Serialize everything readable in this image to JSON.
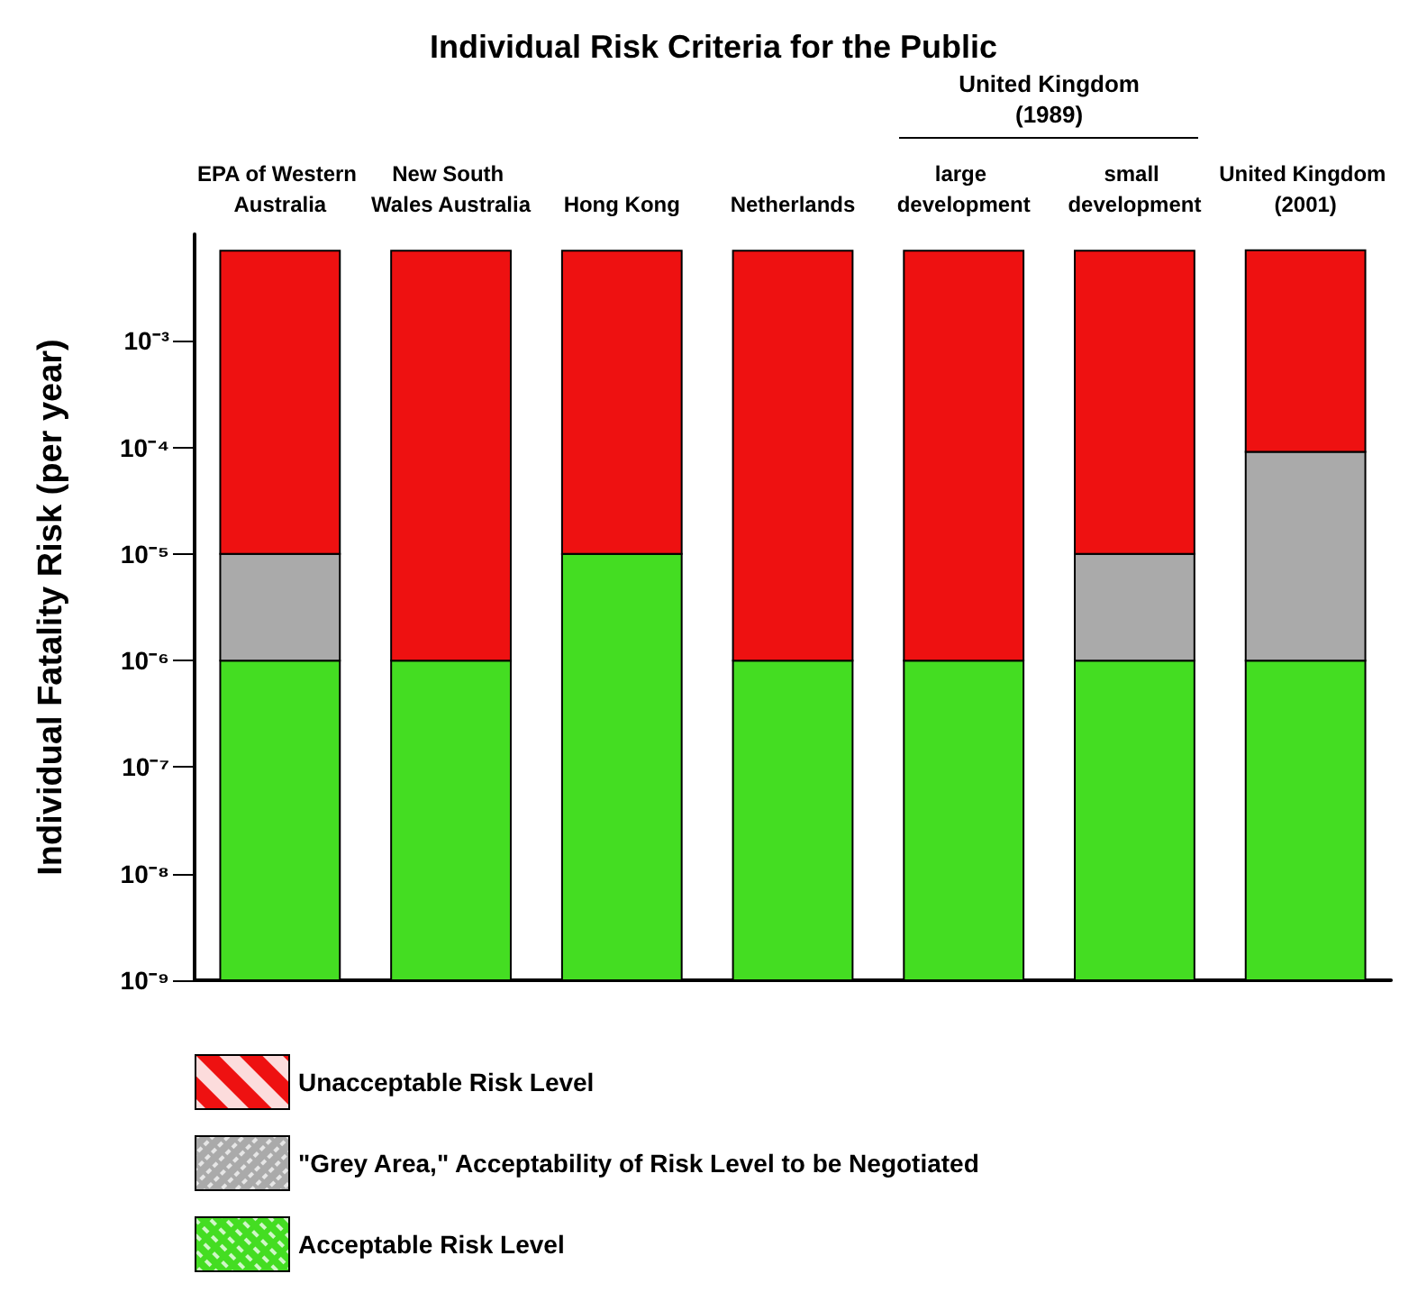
{
  "chart_data": {
    "type": "bar",
    "title": "Individual Risk Criteria for the Public",
    "ylabel": "Individual Fatality Risk (per year)",
    "categories": [
      "EPA of Western Australia",
      "New South Wales Australia",
      "Hong Kong",
      "Netherlands",
      "large development",
      "small development",
      "United Kingdom (2001)"
    ],
    "annotations": [
      "United Kingdom (1989)"
    ],
    "stacked": true,
    "log": true,
    "ylim": [
      1e-09,
      0.01
    ],
    "yticks": [
      {
        "value": 1e-09,
        "label": "10⁻⁹"
      },
      {
        "value": 1e-08,
        "label": "10⁻⁸"
      },
      {
        "value": 1e-07,
        "label": "10⁻⁷"
      },
      {
        "value": 1e-06,
        "label": "10⁻⁶"
      },
      {
        "value": 1e-05,
        "label": "10⁻⁵"
      },
      {
        "value": 0.0001,
        "label": "10⁻⁴"
      },
      {
        "value": 0.001,
        "label": "10⁻³"
      }
    ],
    "legend": "bottom left",
    "grid": false,
    "series": [
      {
        "name": "Acceptable Risk Level",
        "color": "#44dd22",
        "values": [
          1e-06,
          1e-06,
          1e-05,
          1e-06,
          1e-06,
          1e-06,
          1e-06
        ]
      },
      {
        "name": "\"Grey Area,\" Acceptability of Risk Level to be Negotiated",
        "color": "#aaaaaa",
        "values": [
          9e-06,
          null,
          null,
          null,
          null,
          9e-06,
          9e-05
        ]
      },
      {
        "name": "Unacceptable Risk Level",
        "color": "#ee1111",
        "values": [
          0.007,
          0.007,
          0.007,
          0.007,
          0.007,
          0.007,
          0.007
        ]
      }
    ]
  }
}
